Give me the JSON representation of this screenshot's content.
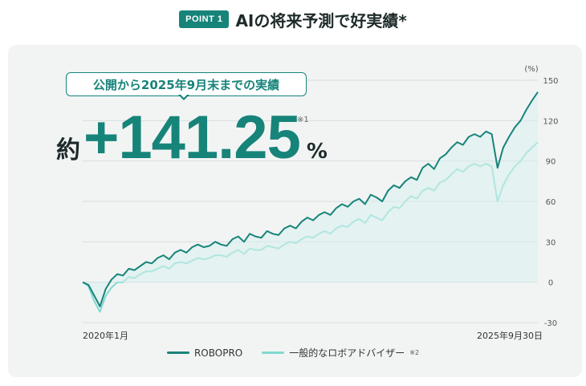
{
  "header": {
    "badge": "POINT 1",
    "headline": "AIの将来予測で好実績*"
  },
  "callout": {
    "period": "公開から2025年9月末までの実績",
    "prefix": "約",
    "value": "+141.25",
    "unit": "%",
    "note": "※1"
  },
  "colors": {
    "robopro": "#17847a",
    "general": "#7fd9cf",
    "accent": "#17847a"
  },
  "chart_data": {
    "type": "line",
    "ylabel_unit": "(%)",
    "ylim": [
      -30,
      150
    ],
    "yticks": [
      150,
      120,
      90,
      60,
      30,
      0,
      -30
    ],
    "x_start_label": "2020年1月",
    "x_end_label": "2025年9月30日",
    "grid": true,
    "legend_position": "bottom",
    "series": [
      {
        "name": "ROBOPRO",
        "note": "",
        "values": [
          0,
          -2,
          -10,
          -18,
          -5,
          2,
          6,
          5,
          10,
          9,
          12,
          15,
          14,
          18,
          20,
          17,
          22,
          24,
          22,
          26,
          28,
          26,
          27,
          30,
          28,
          27,
          32,
          34,
          30,
          36,
          34,
          33,
          38,
          36,
          35,
          40,
          42,
          40,
          45,
          48,
          46,
          50,
          52,
          50,
          55,
          58,
          56,
          60,
          62,
          58,
          65,
          63,
          60,
          68,
          72,
          70,
          75,
          78,
          76,
          85,
          88,
          84,
          92,
          95,
          100,
          104,
          102,
          108,
          110,
          108,
          112,
          110,
          85,
          100,
          108,
          115,
          120,
          128,
          135,
          141.25
        ]
      },
      {
        "name": "一般的なロボアドバイザー",
        "note": "※2",
        "values": [
          0,
          -3,
          -14,
          -22,
          -10,
          -4,
          0,
          0,
          4,
          3,
          6,
          8,
          8,
          10,
          12,
          10,
          14,
          15,
          14,
          16,
          18,
          17,
          18,
          20,
          20,
          19,
          22,
          24,
          21,
          25,
          24,
          24,
          27,
          26,
          25,
          28,
          30,
          29,
          32,
          34,
          33,
          36,
          38,
          36,
          40,
          42,
          41,
          45,
          47,
          44,
          50,
          48,
          46,
          52,
          56,
          55,
          60,
          64,
          62,
          68,
          70,
          68,
          74,
          76,
          80,
          84,
          82,
          86,
          88,
          86,
          88,
          86,
          60,
          72,
          80,
          86,
          90,
          96,
          100,
          104
        ]
      }
    ]
  }
}
